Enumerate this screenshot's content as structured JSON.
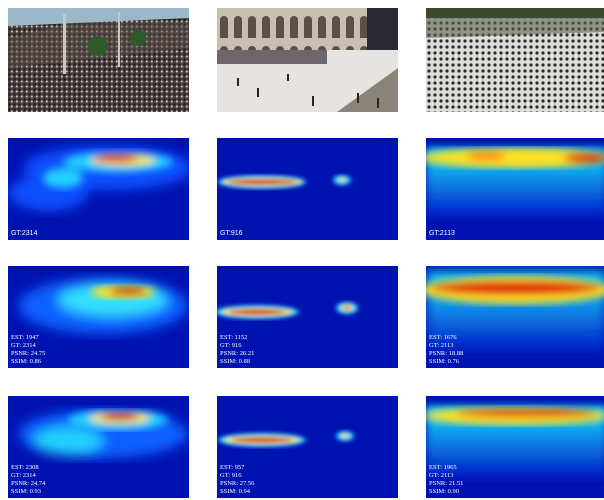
{
  "colors": {
    "jet_background": "#0012b0",
    "hot": "#c81808",
    "mid": "#20d0ff",
    "warm": "#ffe020"
  },
  "ground_truth_row": [
    {
      "gt": "GT:2314"
    },
    {
      "gt": "GT:916"
    },
    {
      "gt": "GT:2113"
    }
  ],
  "estimate_row_1": [
    {
      "est": "EST: 1947",
      "gt": "GT: 2314",
      "psnr": "PSNR: 24.75",
      "ssim": "SSIM: 0.86"
    },
    {
      "est": "EST: 1152",
      "gt": "GT: 916",
      "psnr": "PSNR: 26.21",
      "ssim": "SSIM: 0.88"
    },
    {
      "est": "EST: 1676",
      "gt": "GT: 2113",
      "psnr": "PSNR: 18.88",
      "ssim": "SSIM: 0.76"
    }
  ],
  "estimate_row_2": [
    {
      "est": "EST: 2308",
      "gt": "GT: 2314",
      "psnr": "PSNR: 24.74",
      "ssim": "SSIM: 0.93"
    },
    {
      "est": "EST: 957",
      "gt": "GT: 916",
      "psnr": "PSNR: 27.56",
      "ssim": "SSIM: 0.94"
    },
    {
      "est": "EST: 1965",
      "gt": "GT: 2113",
      "psnr": "PSNR: 21.51",
      "ssim": "SSIM: 0.90"
    }
  ]
}
